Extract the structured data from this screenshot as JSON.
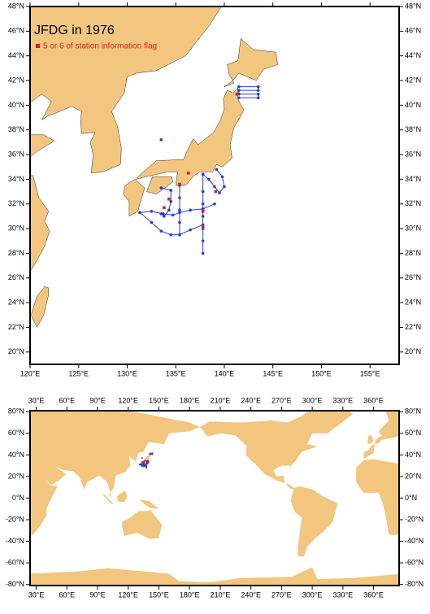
{
  "map": {
    "title": "JFDG in 1976",
    "legend": "5 or 6 of station information flag",
    "station_color": "#1f3fe0",
    "flag_color": "#e01f1f",
    "land_color": "#f2c67e",
    "tracks": [
      {
        "lon": [
          141.5,
          143.5,
          143.5,
          141.5,
          141.5,
          143.5,
          143.5,
          141.5
        ],
        "lat": [
          41.5,
          41.5,
          41.2,
          41.2,
          40.9,
          40.9,
          40.6,
          40.6
        ]
      },
      {
        "lon": [
          137.8,
          137.8,
          137.8,
          137.8,
          137.8,
          137.8,
          137.8
        ],
        "lat": [
          34.4,
          33,
          32,
          31,
          30,
          29,
          28
        ]
      },
      {
        "lon": [
          135.4,
          135.4,
          135.4,
          135.4,
          135.4
        ],
        "lat": [
          33.5,
          32.5,
          31.5,
          30.5,
          29.5
        ]
      },
      {
        "lon": [
          131.3,
          132.5,
          133.5,
          134.5,
          135.4,
          136.5,
          137.8
        ],
        "lat": [
          31.3,
          30.5,
          29.8,
          29.5,
          29.5,
          29.9,
          30.3
        ]
      },
      {
        "lon": [
          131.3,
          132.5,
          133.7,
          134.7,
          135.4,
          136.5,
          137.8,
          139
        ],
        "lat": [
          31.3,
          31.4,
          31.2,
          31.1,
          31.3,
          31.5,
          31.6,
          32
        ]
      },
      {
        "lon": [
          133.5,
          134.5,
          134.5,
          134.3,
          133.8,
          133.5
        ],
        "lat": [
          33.3,
          33.1,
          32.2,
          31.5,
          31,
          31.2
        ]
      },
      {
        "lon": [
          139.2,
          139.8,
          140,
          139.5,
          139,
          138.4,
          137.8
        ],
        "lat": [
          34.8,
          34.2,
          33.4,
          32.9,
          33.4,
          34,
          34.4
        ]
      },
      {
        "lon": [
          133.5
        ],
        "lat": [
          37.2
        ]
      }
    ],
    "flagged": {
      "lon": [
        141.3,
        134.3,
        133.8,
        139.1,
        137.8,
        135.4,
        136.3,
        137.8
      ],
      "lat": [
        40.9,
        32.4,
        31.7,
        33.0,
        30.1,
        33.6,
        34.5,
        31.4
      ]
    },
    "regional": {
      "xlim": [
        120,
        158
      ],
      "ylim": [
        19,
        48
      ],
      "xticks": [
        {
          "value": 120,
          "label": "120°E"
        },
        {
          "value": 125,
          "label": "125°E"
        },
        {
          "value": 130,
          "label": "130°E"
        },
        {
          "value": 135,
          "label": "135°E"
        },
        {
          "value": 140,
          "label": "140°E"
        },
        {
          "value": 145,
          "label": "145°E"
        },
        {
          "value": 150,
          "label": "150°E"
        },
        {
          "value": 155,
          "label": "155°E"
        }
      ],
      "yticks": [
        {
          "value": 20,
          "label": "20°N"
        },
        {
          "value": 22,
          "label": "22°N"
        },
        {
          "value": 24,
          "label": "24°N"
        },
        {
          "value": 26,
          "label": "26°N"
        },
        {
          "value": 28,
          "label": "28°N"
        },
        {
          "value": 30,
          "label": "30°N"
        },
        {
          "value": 32,
          "label": "32°N"
        },
        {
          "value": 34,
          "label": "34°N"
        },
        {
          "value": 36,
          "label": "36°N"
        },
        {
          "value": 38,
          "label": "38°N"
        },
        {
          "value": 40,
          "label": "40°N"
        },
        {
          "value": 42,
          "label": "42°N"
        },
        {
          "value": 44,
          "label": "44°N"
        },
        {
          "value": 46,
          "label": "46°N"
        },
        {
          "value": 48,
          "label": "48°N"
        }
      ]
    },
    "global": {
      "xlim": [
        24,
        385
      ],
      "ylim": [
        -81,
        81
      ],
      "xticks": [
        {
          "value": 30,
          "label": "30°E"
        },
        {
          "value": 60,
          "label": "60°E"
        },
        {
          "value": 90,
          "label": "90°E"
        },
        {
          "value": 120,
          "label": "120°E"
        },
        {
          "value": 150,
          "label": "150°E"
        },
        {
          "value": 180,
          "label": "180°E"
        },
        {
          "value": 210,
          "label": "210°E"
        },
        {
          "value": 240,
          "label": "240°E"
        },
        {
          "value": 270,
          "label": "270°E"
        },
        {
          "value": 300,
          "label": "300°E"
        },
        {
          "value": 330,
          "label": "330°E"
        },
        {
          "value": 360,
          "label": "360°E"
        }
      ],
      "yticks": [
        {
          "value": -80,
          "label": "-80°N"
        },
        {
          "value": -60,
          "label": "-60°N"
        },
        {
          "value": -40,
          "label": "-40°N"
        },
        {
          "value": -20,
          "label": "-20°N"
        },
        {
          "value": 0,
          "label": "0°N"
        },
        {
          "value": 20,
          "label": "20°N"
        },
        {
          "value": 40,
          "label": "40°N"
        },
        {
          "value": 60,
          "label": "60°N"
        },
        {
          "value": 80,
          "label": "80°N"
        }
      ]
    }
  }
}
